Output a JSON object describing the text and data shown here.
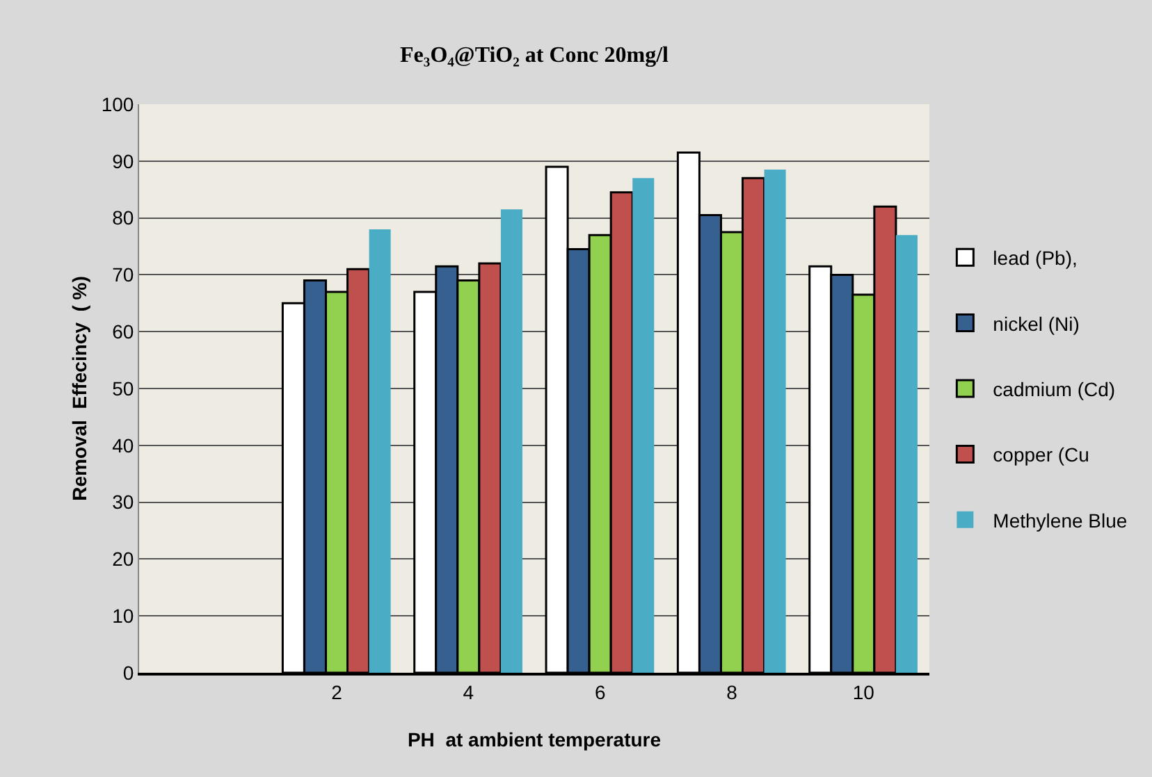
{
  "chart_data": {
    "type": "bar",
    "title": "Fe₃O₄@TiO₂ at Conc 20mg/l",
    "xlabel": "PH  at ambient temperature",
    "ylabel": "Removal  Effecincy  ( %)",
    "categories": [
      null,
      "2",
      "4",
      "6",
      "8",
      "10"
    ],
    "series": [
      {
        "name": "lead (Pb),",
        "color": "#ffffff",
        "values": [
          null,
          65,
          67,
          89,
          91.5,
          71.5
        ]
      },
      {
        "name": "nickel (Ni)",
        "color": "#35608f",
        "values": [
          null,
          69,
          71.5,
          74.5,
          80.5,
          70
        ]
      },
      {
        "name": "cadmium (Cd)",
        "color": "#92d050",
        "values": [
          null,
          67,
          69,
          77,
          77.5,
          66.5
        ]
      },
      {
        "name": "copper (Cu",
        "color": "#c0504d",
        "values": [
          null,
          71,
          72,
          84.5,
          87,
          82
        ]
      },
      {
        "name": "Methylene Blue",
        "color": "#4bacc6",
        "values": [
          null,
          78,
          81.5,
          87,
          88.5,
          77
        ]
      }
    ],
    "ylim": [
      0,
      100
    ],
    "yticks": [
      0,
      10,
      20,
      30,
      40,
      50,
      60,
      70,
      80,
      90,
      100
    ],
    "grid": "y",
    "legend": "right"
  }
}
